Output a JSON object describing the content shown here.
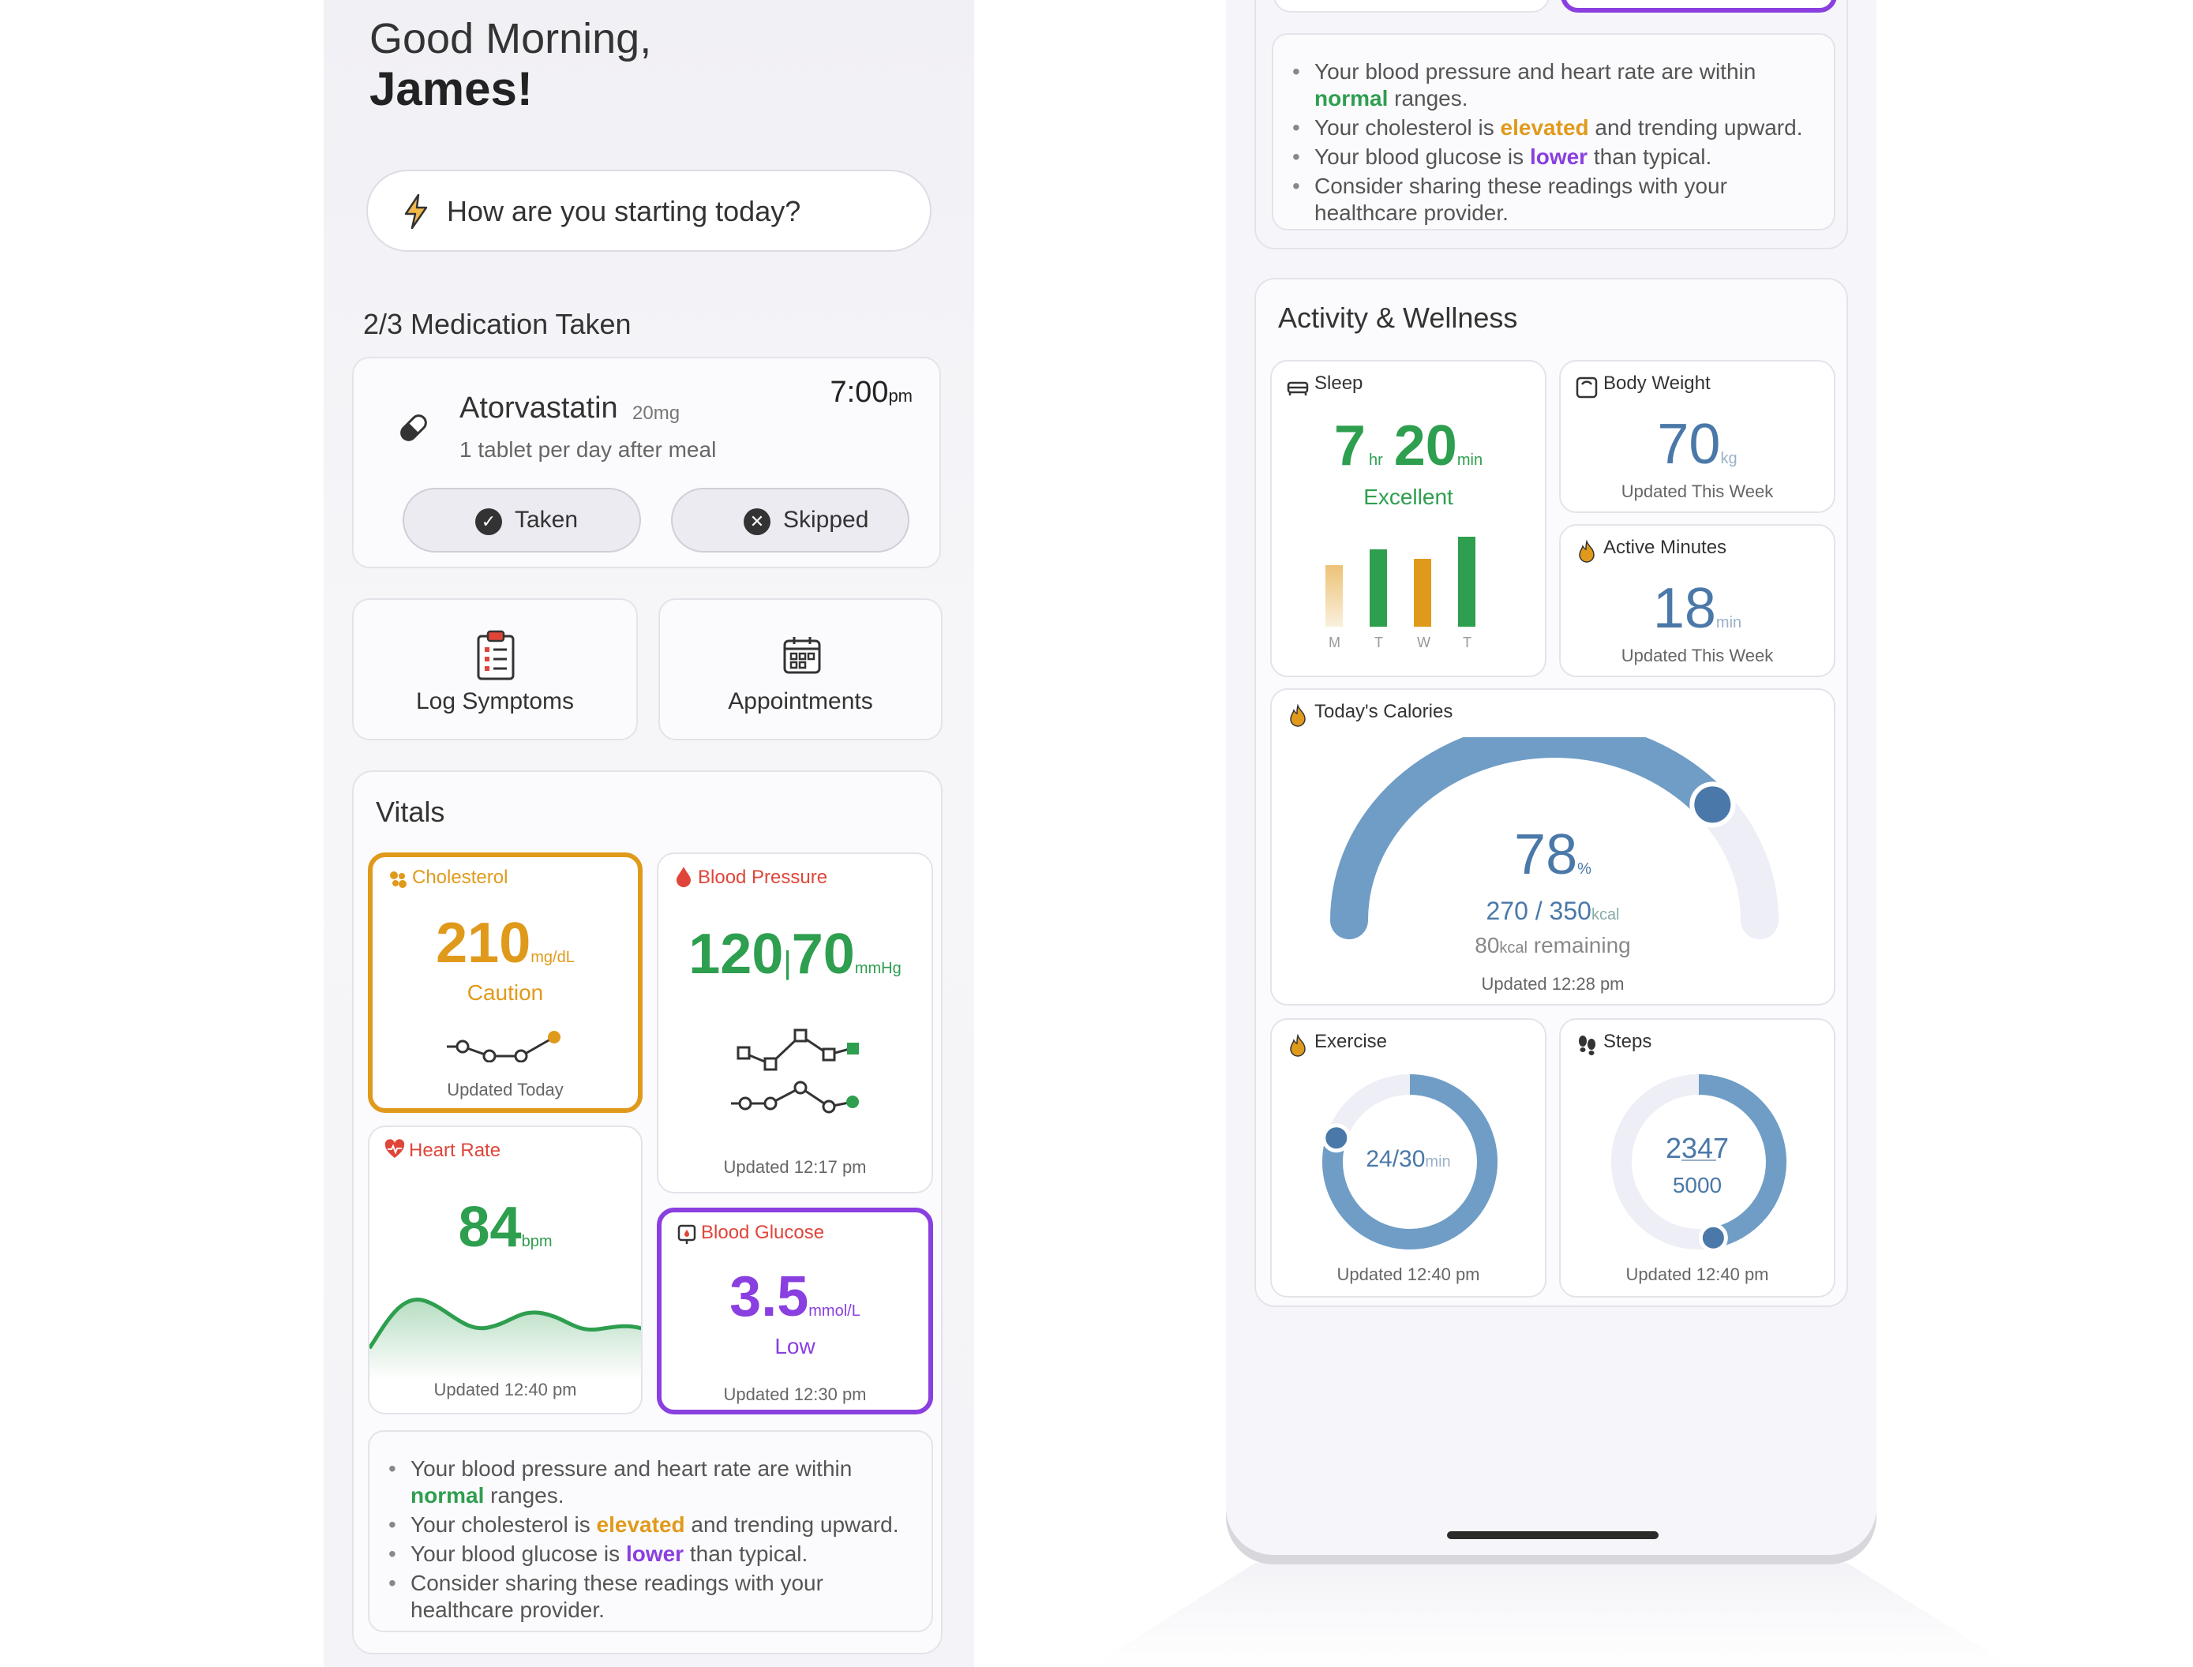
{
  "greeting": {
    "line1": "Good Morning,",
    "line2": "James!"
  },
  "prompt": {
    "text": "How are you starting today?"
  },
  "medication": {
    "summary": "2/3 Medication Taken",
    "name": "Atorvastatin",
    "dose": "20mg",
    "time": "7:00",
    "time_suffix": "pm",
    "instructions": "1 tablet per day after meal",
    "taken_label": "Taken",
    "skipped_label": "Skipped"
  },
  "quick_actions": {
    "log_symptoms": "Log Symptoms",
    "appointments": "Appointments"
  },
  "vitals": {
    "title": "Vitals",
    "cholesterol": {
      "label": "Cholesterol",
      "value": "210",
      "unit": "mg/dL",
      "status": "Caution",
      "updated": "Updated Today",
      "color": "#e09a1b"
    },
    "blood_pressure": {
      "label": "Blood Pressure",
      "systolic": "120",
      "diastolic": "70",
      "unit": "mmHg",
      "updated": "Updated 12:17 pm",
      "color": "#2e9e4f"
    },
    "heart_rate": {
      "label": "Heart Rate",
      "value": "84",
      "unit": "bpm",
      "updated": "Updated 12:40 pm",
      "color": "#2e9e4f"
    },
    "blood_glucose": {
      "label": "Blood Glucose",
      "value": "3.5",
      "unit": "mmol/L",
      "status": "Low",
      "updated": "Updated 12:30 pm",
      "color": "#8a3fe0"
    }
  },
  "insights": {
    "bp_hr_prefix": "Your blood pressure and heart rate are within",
    "bp_hr_highlight": "normal",
    "bp_hr_suffix": "ranges.",
    "chol_prefix": "Your cholesterol is",
    "chol_highlight": "elevated",
    "chol_suffix": "and trending upward.",
    "glucose_prefix": "Your blood glucose is",
    "glucose_highlight": "lower",
    "glucose_suffix": "than typical.",
    "share": "Consider sharing these readings with your healthcare provider."
  },
  "activity": {
    "title": "Activity & Wellness",
    "sleep": {
      "label": "Sleep",
      "hours": "7",
      "hours_unit": "hr",
      "minutes": "20",
      "minutes_unit": "min",
      "status": "Excellent",
      "days": [
        "M",
        "T",
        "W",
        "T"
      ]
    },
    "body_weight": {
      "label": "Body Weight",
      "value": "70",
      "unit": "kg",
      "updated": "Updated This Week"
    },
    "active_minutes": {
      "label": "Active Minutes",
      "value": "18",
      "unit": "min",
      "updated": "Updated This Week"
    },
    "calories": {
      "label": "Today's Calories",
      "percent": "78",
      "percent_unit": "%",
      "consumed": "270",
      "separator": "/",
      "goal": "350",
      "goal_unit": "kcal",
      "remaining_value": "80",
      "remaining_unit": "kcal",
      "remaining_label": "remaining",
      "updated": "Updated 12:28 pm",
      "progress_fraction": 0.78
    },
    "exercise": {
      "label": "Exercise",
      "value": "24/30",
      "unit": "min",
      "updated": "Updated 12:40 pm",
      "progress_fraction": 0.8
    },
    "steps": {
      "label": "Steps",
      "value": "2347",
      "goal": "5000",
      "updated": "Updated 12:40 pm",
      "progress_fraction": 0.47
    }
  },
  "colors": {
    "accent_blue": "#4a78a8",
    "green": "#2e9e4f",
    "orange": "#e09a1b",
    "purple": "#8a3fe0",
    "red": "#e0453a"
  }
}
